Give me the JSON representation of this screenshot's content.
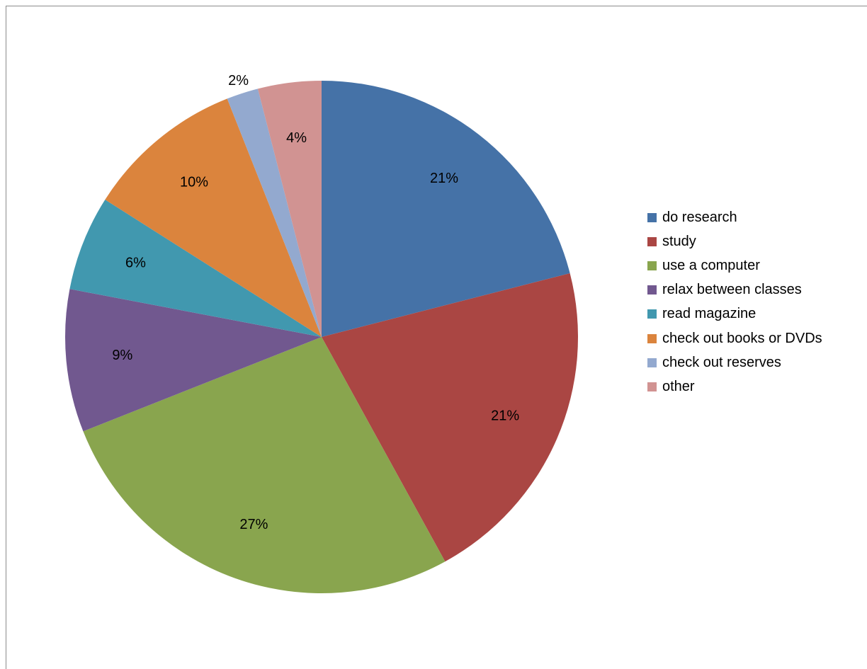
{
  "chart_data": {
    "type": "pie",
    "title": "",
    "legend_position": "right",
    "slices": [
      {
        "label": "do research",
        "value": 21,
        "display": "21%",
        "color": "#4572A7"
      },
      {
        "label": "study",
        "value": 21,
        "display": "21%",
        "color": "#AA4643"
      },
      {
        "label": "use a computer",
        "value": 27,
        "display": "27%",
        "color": "#89A54E"
      },
      {
        "label": "relax between classes",
        "value": 9,
        "display": "9%",
        "color": "#71588F"
      },
      {
        "label": "read magazine",
        "value": 6,
        "display": "6%",
        "color": "#4198AF"
      },
      {
        "label": "check out books or DVDs",
        "value": 10,
        "display": "10%",
        "color": "#DB843D"
      },
      {
        "label": "check out reserves",
        "value": 2,
        "display": "2%",
        "color": "#93A9CF"
      },
      {
        "label": "other",
        "value": 4,
        "display": "4%",
        "color": "#D19392"
      }
    ]
  }
}
